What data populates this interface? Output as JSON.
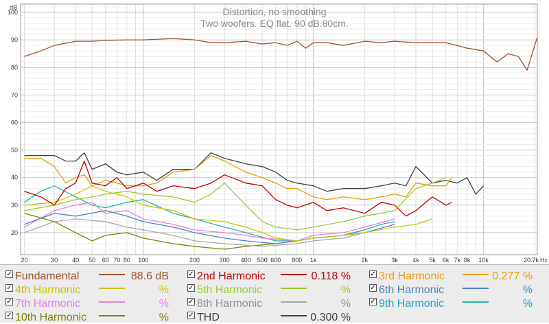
{
  "chart_data": {
    "type": "line",
    "title": "Distortion, no smoothing",
    "subtitle": "Two woofers. EQ flat. 90 dB.80cm.",
    "ylabel": "dB",
    "xunit": "Hz",
    "x_scale": "log",
    "xlim": [
      19,
      20700
    ],
    "ylim": [
      12,
      103
    ],
    "y_ticks": [
      20,
      30,
      40,
      50,
      60,
      70,
      80,
      90,
      100
    ],
    "x_ticks": [
      {
        "v": 20,
        "label": "20"
      },
      {
        "v": 30,
        "label": "30"
      },
      {
        "v": 40,
        "label": "40"
      },
      {
        "v": 50,
        "label": "50"
      },
      {
        "v": 60,
        "label": "60"
      },
      {
        "v": 70,
        "label": "70"
      },
      {
        "v": 80,
        "label": "80"
      },
      {
        "v": 100,
        "label": "100"
      },
      {
        "v": 200,
        "label": "200"
      },
      {
        "v": 300,
        "label": "300"
      },
      {
        "v": 400,
        "label": "400"
      },
      {
        "v": 500,
        "label": "500"
      },
      {
        "v": 600,
        "label": "600"
      },
      {
        "v": 800,
        "label": "800"
      },
      {
        "v": 1000,
        "label": "1k"
      },
      {
        "v": 2000,
        "label": "2k"
      },
      {
        "v": 3000,
        "label": "3k"
      },
      {
        "v": 4000,
        "label": "4k"
      },
      {
        "v": 5000,
        "label": "5k"
      },
      {
        "v": 6000,
        "label": "6k"
      },
      {
        "v": 7000,
        "label": "7k"
      },
      {
        "v": 8000,
        "label": "8k"
      },
      {
        "v": 10000,
        "label": "10k"
      },
      {
        "v": 20700,
        "label": "20.7k"
      }
    ],
    "grid": true,
    "series": [
      {
        "name": "Fundamental",
        "color": "#a0522d",
        "x": [
          20,
          25,
          30,
          40,
          50,
          60,
          80,
          100,
          150,
          200,
          250,
          300,
          400,
          500,
          600,
          700,
          800,
          900,
          1000,
          1200,
          1500,
          2000,
          2500,
          3000,
          4000,
          5000,
          6000,
          7000,
          8000,
          10000,
          12000,
          14000,
          16000,
          18000,
          20700
        ],
        "y": [
          84,
          86,
          88,
          89.5,
          89.5,
          89.8,
          90,
          90,
          90.5,
          90,
          89,
          89,
          89.5,
          88.5,
          89,
          88,
          89.5,
          87,
          89,
          89,
          88,
          89.5,
          89,
          89.5,
          89,
          89,
          89,
          88,
          87,
          86,
          82,
          85,
          84,
          79,
          91
        ]
      },
      {
        "name": "2nd Harmonic",
        "color": "#c00000",
        "x": [
          20,
          25,
          30,
          35,
          40,
          45,
          50,
          60,
          70,
          80,
          100,
          120,
          150,
          200,
          250,
          300,
          400,
          500,
          600,
          700,
          800,
          1000,
          1200,
          1500,
          2000,
          2500,
          3000,
          3500,
          4000,
          5000,
          6000,
          6500
        ],
        "y": [
          35,
          33,
          30,
          36,
          38,
          46,
          38,
          37,
          40,
          36,
          38,
          35,
          37,
          36,
          38,
          41,
          38,
          37,
          32,
          30,
          29,
          31,
          28,
          29,
          27,
          31,
          30,
          26,
          28,
          33,
          30,
          31
        ]
      },
      {
        "name": "3rd Harmonic",
        "color": "#e8a000",
        "x": [
          20,
          25,
          30,
          35,
          40,
          45,
          50,
          60,
          70,
          80,
          100,
          120,
          150,
          200,
          250,
          300,
          400,
          500,
          600,
          700,
          800,
          1000,
          1200,
          1500,
          2000,
          2500,
          3000,
          3500,
          4000,
          5000,
          6000,
          6500
        ],
        "y": [
          47,
          47,
          44,
          38,
          40,
          41,
          37,
          39,
          38,
          37,
          37,
          38,
          42,
          43,
          48,
          46,
          42,
          40,
          38,
          36,
          36,
          33,
          32,
          33,
          32,
          33,
          34,
          33,
          38,
          37,
          37,
          40
        ]
      },
      {
        "name": "4th Harmonic",
        "color": "#c8c800",
        "x": [
          20,
          30,
          40,
          50,
          60,
          80,
          100,
          150,
          200,
          300,
          400,
          500,
          600,
          800,
          1000,
          1500,
          2000,
          3000,
          4000,
          5000
        ],
        "y": [
          30,
          31,
          34,
          37,
          35,
          33,
          30,
          28,
          25,
          24,
          22,
          20,
          18,
          17,
          18,
          19,
          20,
          22,
          23,
          25
        ]
      },
      {
        "name": "5th Harmonic",
        "color": "#9acd32",
        "x": [
          20,
          30,
          40,
          50,
          60,
          80,
          100,
          150,
          200,
          250,
          300,
          400,
          500,
          600,
          800,
          1000,
          1500,
          2000,
          3000,
          4000,
          5000,
          6000
        ],
        "y": [
          28,
          30,
          32,
          33,
          34,
          35,
          34,
          33,
          31,
          34,
          38,
          30,
          24,
          22,
          21,
          22,
          24,
          26,
          28,
          36,
          38,
          40
        ]
      },
      {
        "name": "6th Harmonic",
        "color": "#4f81bd",
        "x": [
          20,
          30,
          40,
          60,
          80,
          100,
          150,
          200,
          300,
          400,
          600,
          800,
          1000,
          1500,
          2000,
          3000
        ],
        "y": [
          23,
          27,
          26,
          28,
          26,
          24,
          22,
          20,
          18,
          17,
          16,
          17,
          18,
          19,
          20,
          23
        ]
      },
      {
        "name": "7th Harmonic",
        "color": "#e87ee8",
        "x": [
          20,
          30,
          40,
          50,
          60,
          80,
          100,
          150,
          200,
          300,
          400,
          500,
          800,
          1000,
          1500,
          2000,
          3000
        ],
        "y": [
          22,
          28,
          30,
          31,
          27,
          28,
          25,
          23,
          21,
          20,
          19,
          18,
          17,
          19,
          20,
          22,
          25
        ]
      },
      {
        "name": "8th Harmonic",
        "color": "#a8a8a8",
        "x": [
          20,
          30,
          40,
          60,
          80,
          100,
          150,
          200,
          300,
          500,
          800,
          1000,
          1500,
          2000
        ],
        "y": [
          20,
          24,
          25,
          24,
          22,
          21,
          19,
          17,
          16,
          15,
          16,
          17,
          18,
          20
        ]
      },
      {
        "name": "9th Harmonic",
        "color": "#20b2aa",
        "x": [
          20,
          25,
          30,
          40,
          50,
          60,
          80,
          100,
          150,
          200,
          300,
          400,
          600,
          800,
          1000,
          1500,
          2000,
          2500,
          3000
        ],
        "y": [
          31,
          35,
          37,
          33,
          30,
          29,
          31,
          32,
          27,
          25,
          22,
          20,
          17,
          17,
          18,
          19,
          21,
          23,
          24
        ]
      },
      {
        "name": "10th Harmonic",
        "color": "#808000",
        "x": [
          20,
          30,
          40,
          50,
          60,
          80,
          100,
          150,
          200,
          300,
          400,
          600,
          800,
          1000,
          1500,
          2000
        ],
        "y": [
          27,
          24,
          20,
          17,
          19,
          20,
          18,
          16,
          15,
          14,
          15,
          16,
          17,
          18,
          19,
          21
        ]
      },
      {
        "name": "THD",
        "color": "#404040",
        "x": [
          20,
          25,
          30,
          35,
          40,
          45,
          50,
          60,
          70,
          80,
          100,
          120,
          150,
          200,
          250,
          300,
          400,
          500,
          600,
          700,
          800,
          1000,
          1200,
          1500,
          2000,
          2500,
          3000,
          3500,
          4000,
          5000,
          6000,
          7000,
          8000,
          9000,
          10000
        ],
        "y": [
          48,
          48,
          48,
          46,
          46,
          49,
          43,
          45,
          42,
          41,
          42,
          39,
          43,
          43,
          49,
          47,
          45,
          44,
          42,
          39,
          38,
          37,
          35,
          36,
          36,
          37,
          38,
          37,
          44,
          38,
          39,
          38,
          40,
          34,
          37
        ]
      }
    ]
  },
  "legend": [
    {
      "name": "Fundamental",
      "value": "88.6 dB",
      "checked": true,
      "color": "#a0522d",
      "text_color": "#a0522d"
    },
    {
      "name": "2nd Harmonic",
      "value": "0.118 %",
      "checked": true,
      "color": "#c00000",
      "text_color": "#c00000"
    },
    {
      "name": "3rd Harmonic",
      "value": "0.277 %",
      "checked": true,
      "color": "#e8a000",
      "text_color": "#e8a000"
    },
    {
      "name": "4th Harmonic",
      "value": "%",
      "checked": true,
      "color": "#c8c800",
      "text_color": "#c8c800"
    },
    {
      "name": "5th Harmonic",
      "value": "%",
      "checked": true,
      "color": "#9acd32",
      "text_color": "#9acd32"
    },
    {
      "name": "6th Harmonic",
      "value": "%",
      "checked": true,
      "color": "#4f81bd",
      "text_color": "#4f81bd"
    },
    {
      "name": "7th Harmonic",
      "value": "%",
      "checked": true,
      "color": "#e87ee8",
      "text_color": "#e87ee8"
    },
    {
      "name": "8th Harmonic",
      "value": "%",
      "checked": true,
      "color": "#a8a8a8",
      "text_color": "#909090"
    },
    {
      "name": "9th Harmonic",
      "value": "%",
      "checked": true,
      "color": "#20b2aa",
      "text_color": "#20a0c0"
    },
    {
      "name": "10th Harmonic",
      "value": "%",
      "checked": true,
      "color": "#808000",
      "text_color": "#808000"
    },
    {
      "name": "THD",
      "value": "0.300 %",
      "checked": true,
      "color": "#404040",
      "text_color": "#404040"
    }
  ],
  "checkmark": "✓"
}
